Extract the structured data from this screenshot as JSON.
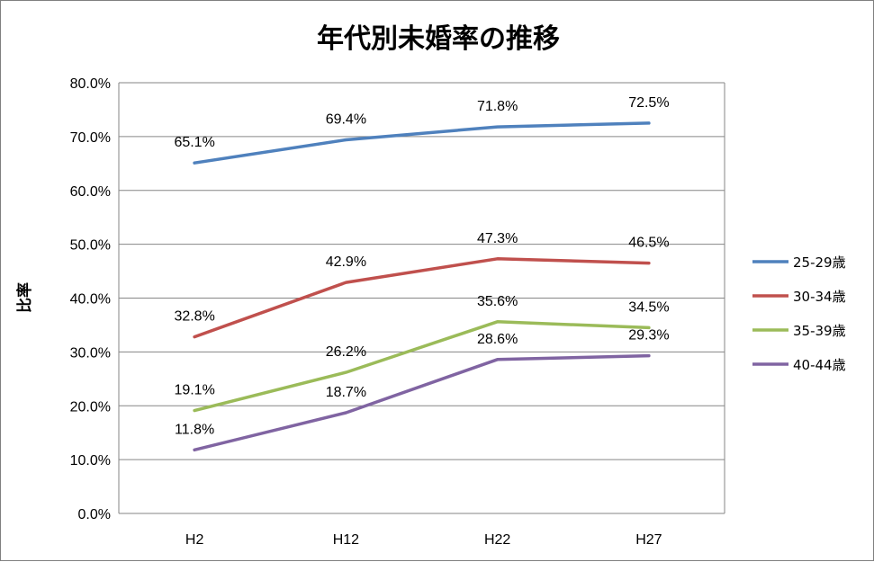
{
  "chart_data": {
    "type": "line",
    "title": "年代別未婚率の推移",
    "xlabel": "",
    "ylabel": "比率",
    "categories": [
      "H2",
      "H12",
      "H22",
      "H27"
    ],
    "ylim": [
      0,
      80
    ],
    "yticks": [
      "0.0%",
      "10.0%",
      "20.0%",
      "30.0%",
      "40.0%",
      "50.0%",
      "60.0%",
      "70.0%",
      "80.0%"
    ],
    "grid": true,
    "legend_position": "right",
    "series": [
      {
        "name": "25-29歳",
        "color": "#4F81BD",
        "values": [
          65.1,
          69.4,
          71.8,
          72.5
        ],
        "labels": [
          "65.1%",
          "69.4%",
          "71.8%",
          "72.5%"
        ]
      },
      {
        "name": "30-34歳",
        "color": "#C0504D",
        "values": [
          32.8,
          42.9,
          47.3,
          46.5
        ],
        "labels": [
          "32.8%",
          "42.9%",
          "47.3%",
          "46.5%"
        ]
      },
      {
        "name": "35-39歳",
        "color": "#9BBB59",
        "values": [
          19.1,
          26.2,
          35.6,
          34.5
        ],
        "labels": [
          "19.1%",
          "26.2%",
          "35.6%",
          "34.5%"
        ]
      },
      {
        "name": "40-44歳",
        "color": "#8064A2",
        "values": [
          11.8,
          18.7,
          28.6,
          29.3
        ],
        "labels": [
          "11.8%",
          "18.7%",
          "28.6%",
          "29.3%"
        ]
      }
    ]
  }
}
